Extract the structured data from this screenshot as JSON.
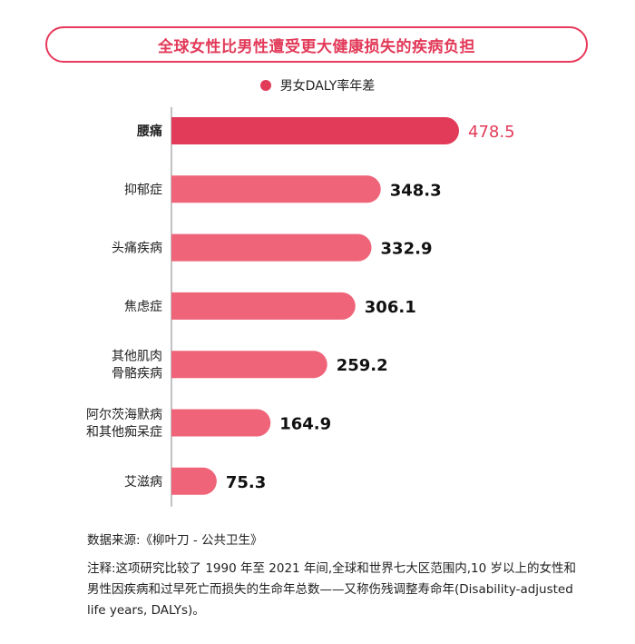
{
  "title": "全球女性比男性遭受更大健康损失的疾病负担",
  "legend_label": "男女DALY率年差",
  "colors": {
    "highlight": "#e23a59",
    "bar": "#ef6479",
    "accent_text": "#e23a59"
  },
  "chart_data": {
    "type": "bar",
    "orientation": "horizontal",
    "categories": [
      [
        "腰痛"
      ],
      [
        "抑郁症"
      ],
      [
        "头痛疾病"
      ],
      [
        "焦虑症"
      ],
      [
        "其他肌肉",
        "骨骼疾病"
      ],
      [
        "阿尔茨海默病",
        "和其他痴呆症"
      ],
      [
        "艾滋病"
      ]
    ],
    "values": [
      478.5,
      348.3,
      332.9,
      306.1,
      259.2,
      164.9,
      75.3
    ],
    "value_labels": [
      "478.5",
      "348.3",
      "332.9",
      "306.1",
      "259.2",
      "164.9",
      "75.3"
    ],
    "highlight_index": 0,
    "series": [
      {
        "name": "男女DALY率年差",
        "values": [
          478.5,
          348.3,
          332.9,
          306.1,
          259.2,
          164.9,
          75.3
        ]
      }
    ],
    "xlabel": "",
    "ylabel": "",
    "grid": false,
    "legend_position": "top-center"
  },
  "source": "数据来源:《柳叶刀 - 公共卫生》",
  "note": "注释:这项研究比较了 1990 年至 2021 年间,全球和世界七大区范围内,10 岁以上的女性和男性因疾病和过早死亡而损失的生命年总数——又称伤残调整寿命年(Disability-adjusted life years, DALYs)。"
}
